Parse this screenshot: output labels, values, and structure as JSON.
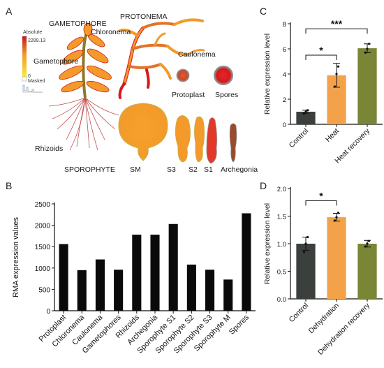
{
  "panels": {
    "a": "A",
    "b": "B",
    "c": "C",
    "d": "D"
  },
  "illustration": {
    "gametophore_title": "GAMETOPHORE",
    "protonema_title": "PROTONEMA",
    "chloronema": "Chloronema",
    "caulonema": "Caulonema",
    "gametophore": "Gametophore",
    "protoplast": "Protoplast",
    "spores": "Spores",
    "rhizoids": "Rhizoids",
    "sporophyte": "SPOROPHYTE",
    "sm": "SM",
    "s3": "S3",
    "s2": "S2",
    "s1": "S1",
    "archegonia": "Archegonia",
    "scale_title": "Absolute",
    "scale_max": "2289.13",
    "scale_min": "0",
    "scale_masked": "Masked",
    "colors": {
      "high": "#d7191c",
      "mid": "#f59e2b",
      "low": "#f7e83b",
      "dark": "#5a6b3a"
    }
  },
  "chart_data": [
    {
      "panel": "B",
      "type": "bar",
      "xlabel": "",
      "ylabel": "RMA expression values",
      "ylim": [
        0,
        2500
      ],
      "yticks": [
        0,
        500,
        1000,
        1500,
        2000,
        2500
      ],
      "categories": [
        "Protoplast",
        "Chloronema",
        "Caulonema",
        "Gametophores",
        "Rhizoids",
        "Archegonia",
        "Sporophyte S1",
        "Sporophyte S2",
        "Sporophyte S3",
        "Sporophyte M",
        "Spores"
      ],
      "values": [
        1560,
        950,
        1200,
        960,
        1780,
        1780,
        2030,
        1080,
        960,
        730,
        2280
      ],
      "color": "#0a0a0a"
    },
    {
      "panel": "C",
      "type": "bar",
      "xlabel": "",
      "ylabel": "Relative expression level",
      "ylim": [
        0,
        8
      ],
      "yticks": [
        0,
        2,
        4,
        6,
        8
      ],
      "categories": [
        "Control",
        "Heat",
        "Heat recovery"
      ],
      "values": [
        1.0,
        3.9,
        6.05
      ],
      "errors": [
        0.12,
        0.95,
        0.35
      ],
      "points": [
        [
          0.85,
          1.0,
          1.12
        ],
        [
          3.0,
          4.0,
          4.6
        ],
        [
          5.7,
          6.0,
          6.4
        ]
      ],
      "colors": [
        "#3b403c",
        "#f4a24a",
        "#7a8536"
      ],
      "significance": [
        {
          "from": 0,
          "to": 1,
          "label": "*",
          "y": 5.5
        },
        {
          "from": 0,
          "to": 2,
          "label": "***",
          "y": 7.6
        }
      ]
    },
    {
      "panel": "D",
      "type": "bar",
      "xlabel": "",
      "ylabel": "Relative expression level",
      "ylim": [
        0,
        2.0
      ],
      "yticks": [
        0.0,
        0.5,
        1.0,
        1.5,
        2.0
      ],
      "categories": [
        "Control",
        "Dehydration",
        "Dehydration recovery"
      ],
      "values": [
        1.0,
        1.48,
        1.0
      ],
      "errors": [
        0.12,
        0.07,
        0.06
      ],
      "points": [
        [
          0.85,
          1.0,
          1.12
        ],
        [
          1.42,
          1.48,
          1.56
        ],
        [
          0.95,
          1.0,
          1.05
        ]
      ],
      "colors": [
        "#3b403c",
        "#f4a24a",
        "#7a8536"
      ],
      "significance": [
        {
          "from": 0,
          "to": 1,
          "label": "*",
          "y": 1.78
        }
      ]
    }
  ]
}
